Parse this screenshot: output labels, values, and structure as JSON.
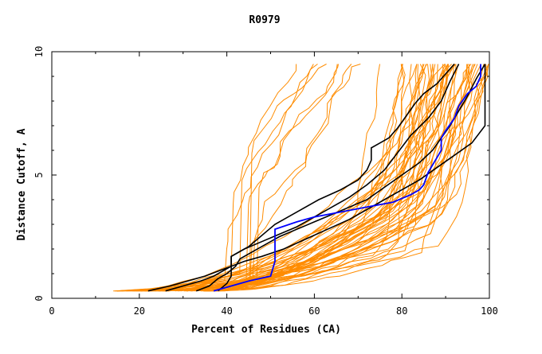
{
  "chart_data": {
    "type": "line",
    "title": "R0979",
    "xlabel": "Percent of Residues (CA)",
    "ylabel": "Distance Cutoff, A",
    "xlim": [
      0,
      100
    ],
    "ylim": [
      0,
      10
    ],
    "x_ticks": [
      "0",
      "20",
      "40",
      "60",
      "80",
      "100"
    ],
    "y_ticks": [
      "0",
      "5",
      "10"
    ],
    "grid": false,
    "colors": {
      "background_models": "#ff8c00",
      "reference_models": "#000000",
      "highlight_model": "#0000ff",
      "axes": "#000000"
    },
    "background_curve_count": 60,
    "series": [
      {
        "role": "reference",
        "x": [
          22,
          27,
          31,
          35,
          38,
          41,
          44,
          48,
          53,
          58,
          63,
          68,
          72,
          76,
          80,
          84,
          88,
          92,
          96,
          99,
          99,
          99
        ],
        "y": [
          0.3,
          0.5,
          0.7,
          0.9,
          1.1,
          1.3,
          1.5,
          1.7,
          2.0,
          2.4,
          2.8,
          3.2,
          3.6,
          4.0,
          4.4,
          4.8,
          5.3,
          5.8,
          6.3,
          7.0,
          8.3,
          9.5
        ]
      },
      {
        "role": "reference",
        "x": [
          26,
          30,
          34,
          37,
          39,
          41,
          41,
          44,
          48,
          52,
          56,
          60,
          64,
          68,
          72,
          76,
          79,
          82,
          86,
          89,
          91,
          93
        ],
        "y": [
          0.3,
          0.5,
          0.7,
          0.9,
          1.1,
          1.3,
          1.7,
          2.0,
          2.3,
          2.6,
          2.9,
          3.3,
          3.7,
          4.1,
          4.6,
          5.2,
          5.9,
          6.6,
          7.3,
          8.0,
          8.8,
          9.5
        ]
      },
      {
        "role": "reference",
        "x": [
          33,
          36,
          38,
          40,
          42,
          43,
          46,
          49,
          52,
          56,
          60,
          64,
          68,
          72,
          76,
          80,
          84,
          87,
          89,
          91,
          93,
          95,
          97,
          99
        ],
        "y": [
          0.3,
          0.5,
          0.8,
          1.0,
          1.3,
          1.6,
          1.9,
          2.2,
          2.5,
          2.8,
          3.1,
          3.4,
          3.7,
          4.0,
          4.5,
          5.0,
          5.5,
          6.0,
          6.5,
          7.0,
          7.6,
          8.2,
          8.9,
          9.5
        ]
      },
      {
        "role": "reference",
        "x": [
          38,
          40,
          41,
          41,
          43,
          45,
          47,
          49,
          51,
          54,
          57,
          61,
          66,
          70,
          72,
          73,
          73,
          75,
          77,
          79,
          81,
          83,
          85,
          88,
          90,
          92
        ],
        "y": [
          0.3,
          0.6,
          0.9,
          1.7,
          1.9,
          2.1,
          2.4,
          2.7,
          3.0,
          3.3,
          3.6,
          4.0,
          4.4,
          4.8,
          5.2,
          5.6,
          6.1,
          6.3,
          6.5,
          6.9,
          7.4,
          7.9,
          8.3,
          8.7,
          9.1,
          9.5
        ]
      },
      {
        "role": "highlight",
        "x": [
          37,
          41,
          45,
          50,
          51,
          51,
          56,
          60,
          66,
          72,
          78,
          82,
          84,
          85,
          86,
          87,
          88,
          89,
          89,
          90,
          92,
          93,
          95,
          97,
          98,
          98
        ],
        "y": [
          0.3,
          0.5,
          0.7,
          0.9,
          1.5,
          2.8,
          3.1,
          3.3,
          3.5,
          3.7,
          3.9,
          4.2,
          4.4,
          4.6,
          5.1,
          5.4,
          5.7,
          6.0,
          6.5,
          6.8,
          7.3,
          7.8,
          8.3,
          8.6,
          9.0,
          9.5
        ]
      }
    ]
  }
}
